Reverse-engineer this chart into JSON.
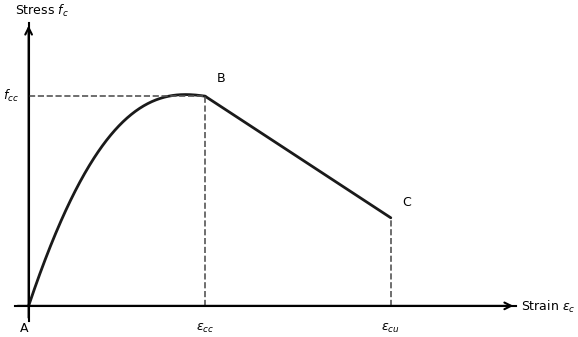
{
  "title": "",
  "background_color": "#ffffff",
  "curve_color": "#1a1a1a",
  "dashed_color": "#555555",
  "fcc_level": 1.0,
  "eps_cc": 0.38,
  "eps_cu": 0.78,
  "stress_C": 0.42,
  "xlim": [
    -0.05,
    1.08
  ],
  "ylim": [
    -0.1,
    1.4
  ],
  "figsize": [
    5.78,
    3.37
  ],
  "dpi": 100
}
